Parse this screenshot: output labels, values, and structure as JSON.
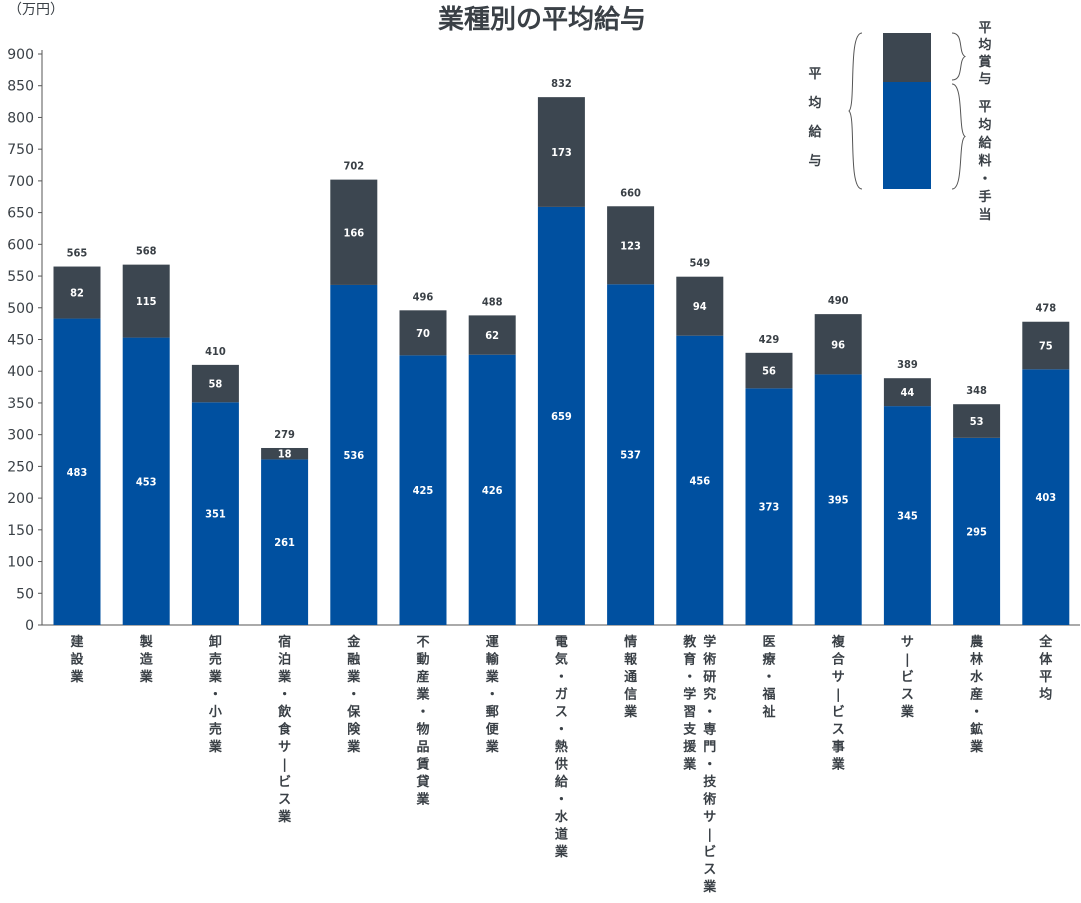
{
  "chart_data": {
    "type": "bar",
    "stacked": true,
    "title": "業種別の平均給与",
    "unit_label": "（万円）",
    "ylim": [
      0,
      900
    ],
    "yticks": [
      0,
      50,
      100,
      150,
      200,
      250,
      300,
      350,
      400,
      450,
      500,
      550,
      600,
      650,
      700,
      750,
      800,
      850,
      900
    ],
    "categories": [
      [
        "建設業"
      ],
      [
        "製造業"
      ],
      [
        "卸売業・小売業"
      ],
      [
        "宿泊業・飲食サービス業"
      ],
      [
        "金融業・保険業"
      ],
      [
        "不動産業・物品賃貸業"
      ],
      [
        "運輸業・郵便業"
      ],
      [
        "電気・ガス・熱供給・水道業"
      ],
      [
        "情報通信業"
      ],
      [
        "学術研究・専門・技術サービス業",
        "教育・学習支援業"
      ],
      [
        "医療・福祉"
      ],
      [
        "複合サービス事業"
      ],
      [
        "サービス業"
      ],
      [
        "農林水産・鉱業"
      ],
      [
        "全体平均"
      ]
    ],
    "series": [
      {
        "name": "平均給料・手当",
        "color": "#0050a0",
        "values": [
          483,
          453,
          351,
          261,
          536,
          425,
          426,
          659,
          537,
          456,
          373,
          395,
          345,
          295,
          403
        ]
      },
      {
        "name": "平均賞与",
        "color": "#3c4650",
        "values": [
          82,
          115,
          58,
          18,
          166,
          70,
          62,
          173,
          123,
          94,
          56,
          96,
          44,
          53,
          75
        ]
      }
    ],
    "totals": [
      565,
      568,
      410,
      279,
      702,
      496,
      488,
      832,
      660,
      549,
      429,
      490,
      389,
      348,
      478
    ],
    "legend": {
      "position": "top-right",
      "group_label": "平均給与",
      "items": [
        "平均賞与",
        "平均給料・手当"
      ]
    }
  }
}
